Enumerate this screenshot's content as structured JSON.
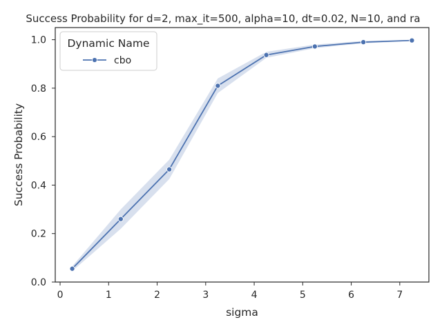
{
  "chart_data": {
    "type": "line",
    "title": "Success Probability for d=2, max_it=500, alpha=10, dt=0.02, N=10, and ra",
    "xlabel": "sigma",
    "ylabel": "Success Probability",
    "xlim": [
      -0.1,
      7.6
    ],
    "ylim": [
      0.0,
      1.05
    ],
    "xticks": [
      0,
      1,
      2,
      3,
      4,
      5,
      6,
      7
    ],
    "xtick_labels": [
      "0",
      "1",
      "2",
      "3",
      "4",
      "5",
      "6",
      "7"
    ],
    "yticks": [
      0.0,
      0.2,
      0.4,
      0.6,
      0.8,
      1.0
    ],
    "ytick_labels": [
      "0.0",
      "0.2",
      "0.4",
      "0.6",
      "0.8",
      "1.0"
    ],
    "grid": false,
    "legend": {
      "title": "Dynamic Name",
      "placement": "top-left"
    },
    "series": [
      {
        "name": "cbo",
        "color": "#4c72b0",
        "band_color": "#4c72b0",
        "marker": "circle",
        "x": [
          0.25,
          1.25,
          2.25,
          3.25,
          4.25,
          5.25,
          6.25,
          7.25
        ],
        "y": [
          0.055,
          0.26,
          0.465,
          0.81,
          0.937,
          0.972,
          0.99,
          0.997
        ],
        "ci_low": [
          0.045,
          0.22,
          0.425,
          0.78,
          0.925,
          0.965,
          0.985,
          0.995
        ],
        "ci_high": [
          0.065,
          0.3,
          0.505,
          0.84,
          0.95,
          0.98,
          0.995,
          0.999
        ]
      }
    ]
  }
}
